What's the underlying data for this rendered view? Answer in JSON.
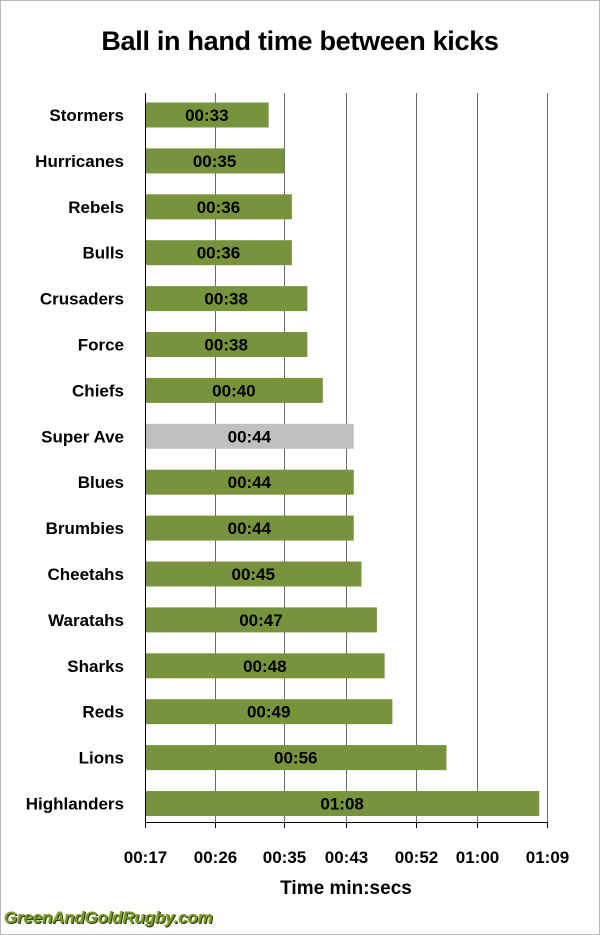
{
  "chart_data": {
    "type": "bar",
    "orientation": "horizontal",
    "title": "Ball in hand time between kicks",
    "xlabel": "Time min:secs",
    "ylabel": "",
    "xlim_seconds": [
      17,
      69
    ],
    "x_ticks_seconds": [
      17,
      26,
      35,
      43,
      52,
      60,
      69
    ],
    "x_tick_labels": [
      "00:17",
      "00:26",
      "00:35",
      "00:43",
      "00:52",
      "01:00",
      "01:09"
    ],
    "grid": "vertical",
    "categories": [
      "Stormers",
      "Hurricanes",
      "Rebels",
      "Bulls",
      "Crusaders",
      "Force",
      "Chiefs",
      "Super Ave",
      "Blues",
      "Brumbies",
      "Cheetahs",
      "Waratahs",
      "Sharks",
      "Reds",
      "Lions",
      "Highlanders"
    ],
    "values_seconds": [
      33,
      35,
      36,
      36,
      38,
      38,
      40,
      44,
      44,
      44,
      45,
      47,
      48,
      49,
      56,
      68
    ],
    "value_labels": [
      "00:33",
      "00:35",
      "00:36",
      "00:36",
      "00:38",
      "00:38",
      "00:40",
      "00:44",
      "00:44",
      "00:44",
      "00:45",
      "00:47",
      "00:48",
      "00:49",
      "00:56",
      "01:08"
    ],
    "highlight_category": "Super Ave",
    "colors": {
      "bar": "#77933c",
      "highlight": "#c0c0c0",
      "grid": "#6a6a6a",
      "axis": "#000000"
    }
  },
  "watermark": "GreenAndGoldRugby.com"
}
